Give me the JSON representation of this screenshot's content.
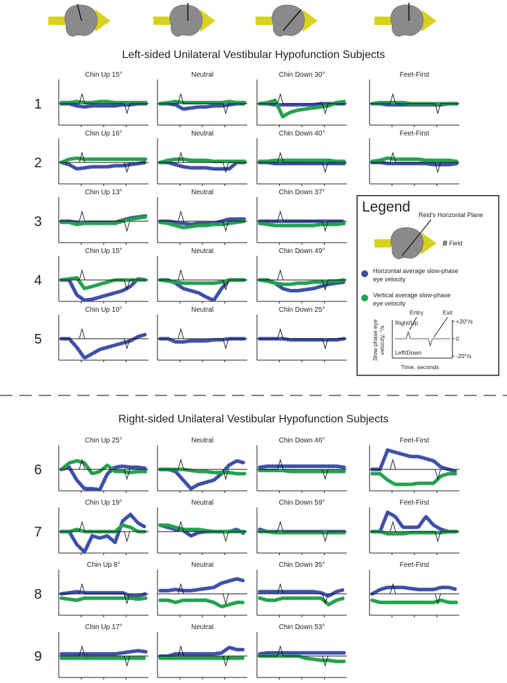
{
  "sections": [
    {
      "title": "Left-sided Unilateral Vestibular Hypofunction Subjects"
    },
    {
      "title": "Right-sided Unilateral Vestibular Hypofunction Subjects"
    }
  ],
  "rows": [
    {
      "label": "1",
      "panels": [
        {
          "title": "Chin Up 15°",
          "blue": [
            0,
            0,
            -2,
            -3,
            -2,
            -2,
            -2,
            -2,
            -1,
            -1,
            0,
            0
          ],
          "green": [
            1,
            1,
            2,
            1,
            1,
            2,
            2,
            1,
            1,
            1,
            1,
            1
          ]
        },
        {
          "title": "Neutral",
          "blue": [
            0,
            0,
            -1,
            -5,
            -4,
            -3,
            -3,
            -2,
            -2,
            -1,
            0,
            0
          ],
          "green": [
            0,
            1,
            2,
            1,
            1,
            1,
            1,
            1,
            1,
            2,
            1,
            1
          ]
        },
        {
          "title": "Chin Down 30°",
          "blue": [
            0,
            0,
            -1,
            -1,
            -1,
            -1,
            -1,
            -1,
            0,
            0,
            0,
            0
          ],
          "green": [
            0,
            1,
            3,
            -12,
            -8,
            -6,
            -5,
            -4,
            -3,
            -2,
            1,
            2
          ]
        },
        {
          "title": "Feet-First",
          "blue": [
            0,
            0,
            -1,
            -1,
            -1,
            -1,
            -1,
            -1,
            -1,
            -1,
            0,
            0
          ],
          "green": [
            0,
            1,
            1,
            1,
            1,
            0,
            0,
            0,
            0,
            0,
            0,
            0
          ]
        }
      ]
    },
    {
      "label": "2",
      "panels": [
        {
          "title": "Chin Up 16°",
          "blue": [
            0,
            -2,
            -6,
            -5,
            -4,
            -4,
            -4,
            -3,
            -3,
            -2,
            -1,
            0
          ],
          "green": [
            0,
            3,
            4,
            3,
            3,
            3,
            3,
            3,
            3,
            3,
            3,
            3
          ]
        },
        {
          "title": "Neutral",
          "blue": [
            0,
            0,
            -2,
            -4,
            -5,
            -5,
            -5,
            -6,
            -6,
            -6,
            0,
            0
          ],
          "green": [
            0,
            2,
            3,
            3,
            2,
            2,
            2,
            1,
            1,
            1,
            1,
            1
          ]
        },
        {
          "title": "Chin Down 40°",
          "blue": [
            0,
            0,
            -1,
            -1,
            -1,
            -1,
            -1,
            -1,
            -1,
            -1,
            -1,
            -1
          ],
          "green": [
            1,
            1,
            2,
            2,
            2,
            2,
            2,
            2,
            2,
            2,
            1,
            1
          ]
        },
        {
          "title": "Feet-First",
          "blue": [
            0,
            0,
            -1,
            -1,
            -1,
            -1,
            -1,
            -1,
            -2,
            -2,
            -2,
            -1
          ],
          "green": [
            1,
            2,
            4,
            3,
            3,
            3,
            3,
            2,
            2,
            2,
            2,
            1
          ]
        }
      ]
    },
    {
      "label": "3",
      "panels": [
        {
          "title": "Chin Up 13°",
          "blue": [
            0,
            0,
            -1,
            -1,
            -1,
            -1,
            -1,
            -1,
            1,
            3,
            4,
            5
          ],
          "green": [
            -1,
            -1,
            -3,
            -2,
            -2,
            -2,
            -2,
            -2,
            0,
            2,
            3,
            4
          ]
        },
        {
          "title": "Neutral",
          "blue": [
            0,
            0,
            -1,
            -2,
            -3,
            -2,
            -2,
            -2,
            0,
            2,
            2,
            2
          ],
          "green": [
            -1,
            -2,
            -4,
            -6,
            -5,
            -4,
            -4,
            -3,
            -3,
            -2,
            -1,
            0
          ]
        },
        {
          "title": "Chin Down 37°",
          "blue": [
            0,
            0,
            0,
            0,
            0,
            0,
            0,
            0,
            0,
            0,
            0,
            0
          ],
          "green": [
            -2,
            -3,
            -4,
            -4,
            -4,
            -4,
            -4,
            -4,
            -3,
            -3,
            -3,
            -2
          ]
        }
      ]
    },
    {
      "label": "4",
      "panels": [
        {
          "title": "Chin Up 15°",
          "blue": [
            0,
            0,
            -14,
            -19,
            -18,
            -16,
            -14,
            -12,
            -10,
            -6,
            1,
            0
          ],
          "green": [
            0,
            1,
            2,
            -8,
            -6,
            -4,
            -2,
            0,
            0,
            0,
            0,
            0
          ]
        },
        {
          "title": "Neutral",
          "blue": [
            0,
            0,
            -3,
            -8,
            -10,
            -12,
            -16,
            -19,
            -8,
            0,
            0,
            0
          ],
          "green": [
            0,
            -1,
            -2,
            -3,
            -3,
            -3,
            -3,
            -3,
            -2,
            0,
            0,
            0
          ]
        },
        {
          "title": "Chin Down 49°",
          "blue": [
            0,
            0,
            -3,
            -8,
            -10,
            -10,
            -9,
            -8,
            -6,
            -4,
            -3,
            -2
          ],
          "green": [
            0,
            -1,
            -3,
            -4,
            -4,
            -3,
            -3,
            -2,
            -2,
            -1,
            -1,
            0
          ]
        }
      ]
    },
    {
      "label": "5",
      "panels": [
        {
          "title": "Chin Up 10°",
          "blue": [
            0,
            0,
            -8,
            -18,
            -14,
            -10,
            -8,
            -6,
            -4,
            -2,
            2,
            4
          ]
        },
        {
          "title": "Neutral",
          "blue": [
            0,
            0,
            -3,
            -3,
            -2,
            -2,
            -2,
            -1,
            -1,
            0,
            0,
            0
          ]
        },
        {
          "title": "Chin Down 25°",
          "blue": [
            0,
            0,
            0,
            0,
            -1,
            -1,
            -1,
            -1,
            -1,
            -1,
            -1,
            0
          ]
        }
      ]
    },
    {
      "label": "6",
      "panels": [
        {
          "title": "Chin Up 25°",
          "blue": [
            0,
            2,
            -10,
            -18,
            -18,
            -19,
            -4,
            2,
            3,
            2,
            2,
            1
          ],
          "green": [
            0,
            6,
            8,
            6,
            -4,
            -2,
            4,
            -2,
            -2,
            -3,
            -2,
            -2
          ]
        },
        {
          "title": "Neutral",
          "blue": [
            0,
            0,
            -2,
            -10,
            -18,
            -14,
            -12,
            -10,
            -4,
            4,
            8,
            6
          ],
          "green": [
            0,
            0,
            0,
            0,
            -1,
            -2,
            -2,
            -3,
            -3,
            -3,
            -4,
            -4
          ]
        },
        {
          "title": "Chin Down 46°",
          "blue": [
            2,
            3,
            3,
            3,
            3,
            3,
            3,
            3,
            3,
            3,
            3,
            2
          ],
          "green": [
            -1,
            -1,
            -1,
            -1,
            -2,
            -2,
            -2,
            -2,
            -2,
            -2,
            -2,
            -2
          ]
        },
        {
          "title": "Feet-First",
          "blue": [
            0,
            0,
            18,
            16,
            14,
            12,
            12,
            10,
            8,
            2,
            0,
            -2
          ],
          "green": [
            -4,
            -4,
            -10,
            -14,
            -14,
            -14,
            -13,
            -13,
            -13,
            -6,
            -4,
            -4
          ]
        }
      ]
    },
    {
      "label": "7",
      "panels": [
        {
          "title": "Chin Up 19°",
          "blue": [
            0,
            0,
            -12,
            -19,
            -4,
            -6,
            -4,
            -10,
            10,
            16,
            8,
            4
          ],
          "green": [
            0,
            0,
            2,
            0,
            0,
            0,
            0,
            0,
            6,
            4,
            0,
            0
          ]
        },
        {
          "title": "Neutral",
          "blue": [
            6,
            4,
            2,
            1,
            -4,
            -1,
            0,
            0,
            0,
            0,
            2,
            -2
          ],
          "green": [
            6,
            6,
            4,
            2,
            2,
            2,
            1,
            0,
            0,
            0,
            0,
            0
          ]
        },
        {
          "title": "Chin Down 59°",
          "blue": [
            2,
            0,
            0,
            0,
            0,
            0,
            0,
            0,
            0,
            0,
            0,
            0
          ],
          "green": [
            0,
            0,
            -1,
            -1,
            -1,
            -1,
            -1,
            -1,
            -1,
            -1,
            -1,
            -1
          ]
        },
        {
          "title": "Feet-First",
          "blue": [
            0,
            0,
            18,
            14,
            4,
            4,
            4,
            14,
            6,
            2,
            0,
            0
          ],
          "green": [
            0,
            0,
            -2,
            -2,
            -2,
            -1,
            -1,
            -1,
            -1,
            -1,
            0,
            0
          ]
        }
      ]
    },
    {
      "label": "8",
      "panels": [
        {
          "title": "Chin Up 8°",
          "blue": [
            0,
            1,
            2,
            1,
            1,
            1,
            1,
            1,
            1,
            -2,
            -2,
            0
          ],
          "green": [
            -4,
            -5,
            -6,
            -4,
            -4,
            -4,
            -4,
            -4,
            -4,
            -4,
            -5,
            -4
          ]
        },
        {
          "title": "Neutral",
          "blue": [
            3,
            3,
            4,
            3,
            3,
            4,
            5,
            6,
            10,
            12,
            14,
            12
          ],
          "green": [
            -6,
            -6,
            -8,
            -6,
            -6,
            -6,
            -6,
            -8,
            -12,
            -10,
            -8,
            -8
          ]
        },
        {
          "title": "Chin Down 35°",
          "blue": [
            2,
            2,
            2,
            2,
            2,
            2,
            2,
            2,
            1,
            -2,
            2,
            4
          ],
          "green": [
            -4,
            -6,
            -6,
            -4,
            -4,
            -4,
            -4,
            -4,
            -4,
            -10,
            -6,
            -4
          ]
        },
        {
          "title": "Feet-First",
          "blue": [
            0,
            4,
            6,
            6,
            6,
            5,
            4,
            4,
            4,
            6,
            6,
            4
          ],
          "green": [
            -6,
            -8,
            -8,
            -8,
            -8,
            -8,
            -8,
            -8,
            -8,
            -6,
            -8,
            -8
          ]
        }
      ]
    },
    {
      "label": "9",
      "panels": [
        {
          "title": "Chin Up 17°",
          "blue": [
            2,
            2,
            2,
            2,
            2,
            2,
            2,
            2,
            3,
            4,
            5,
            4
          ],
          "green": [
            -2,
            -2,
            -2,
            -2,
            -2,
            -2,
            -2,
            -2,
            -2,
            -2,
            -2,
            -2
          ]
        },
        {
          "title": "Neutral",
          "blue": [
            0,
            0,
            2,
            2,
            2,
            2,
            2,
            2,
            3,
            8,
            6,
            6
          ],
          "green": [
            -2,
            -2,
            -2,
            -2,
            -2,
            -2,
            -2,
            -2,
            -2,
            -2,
            -2,
            -2
          ]
        },
        {
          "title": "Chin Down 53°",
          "blue": [
            2,
            3,
            3,
            3,
            3,
            3,
            3,
            3,
            3,
            3,
            3,
            3
          ],
          "green": [
            0,
            0,
            0,
            0,
            0,
            0,
            -2,
            -3,
            -4,
            -4,
            -5,
            -5
          ]
        }
      ]
    }
  ],
  "colors": {
    "blue": "#3b4ea6",
    "green": "#22a04c"
  },
  "legend": {
    "title": "Legend",
    "plane": "Reid's Horizontal Plane",
    "field_symbol": "B",
    "field_text": "Field",
    "horizontal": [
      "Horizontal average slow-phase",
      "eye velocity"
    ],
    "vertical": [
      "Vertical average slow-phase",
      "eye velocity"
    ],
    "y_label": [
      "Slow phase eye",
      "velocity, °/s"
    ],
    "up": "Right/Up",
    "down": "Left/Down",
    "entry": "Entry",
    "exit": "Exit",
    "x_label": "Time, seconds",
    "ticks": [
      {
        "value": 20,
        "label": "+20°/s"
      },
      0,
      {
        "value": -20,
        "label": "-20°/s"
      }
    ]
  }
}
